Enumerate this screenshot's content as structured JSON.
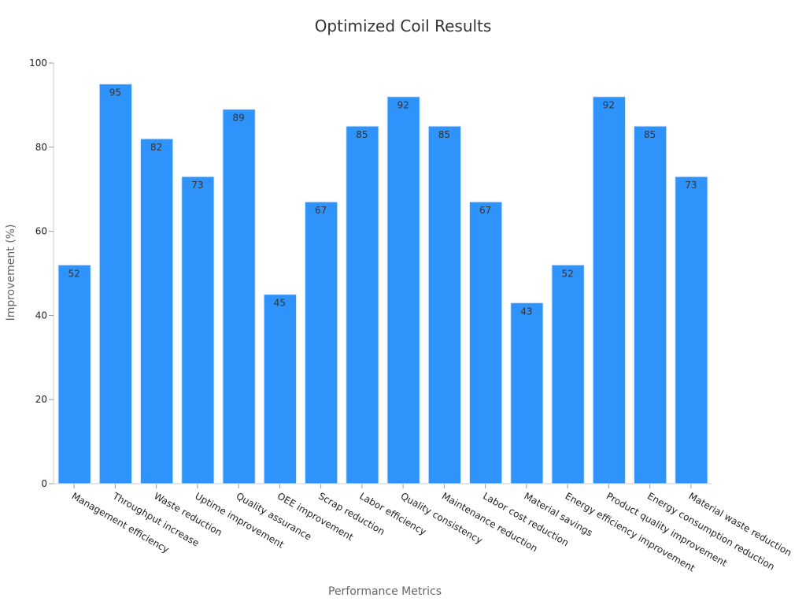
{
  "chart_data": {
    "type": "bar",
    "title": "Optimized Coil Results",
    "xlabel": "Performance Metrics",
    "ylabel": "Improvement (%)",
    "ylim": [
      0,
      100
    ],
    "yticks": [
      0,
      20,
      40,
      60,
      80,
      100
    ],
    "grid": false,
    "bar_color": "#2e93fa",
    "categories": [
      "Management efficiency",
      "Throughput increase",
      "Waste reduction",
      "Uptime improvement",
      "Quality assurance",
      "OEE improvement",
      "Scrap reduction",
      "Labor efficiency",
      "Quality consistency",
      "Maintenance reduction",
      "Labor cost reduction",
      "Material savings",
      "Energy efficiency improvement",
      "Product quality improvement",
      "Energy consumption reduction",
      "Material waste reduction"
    ],
    "values": [
      52,
      95,
      82,
      73,
      89,
      45,
      67,
      85,
      92,
      85,
      67,
      43,
      52,
      92,
      85,
      73
    ]
  }
}
